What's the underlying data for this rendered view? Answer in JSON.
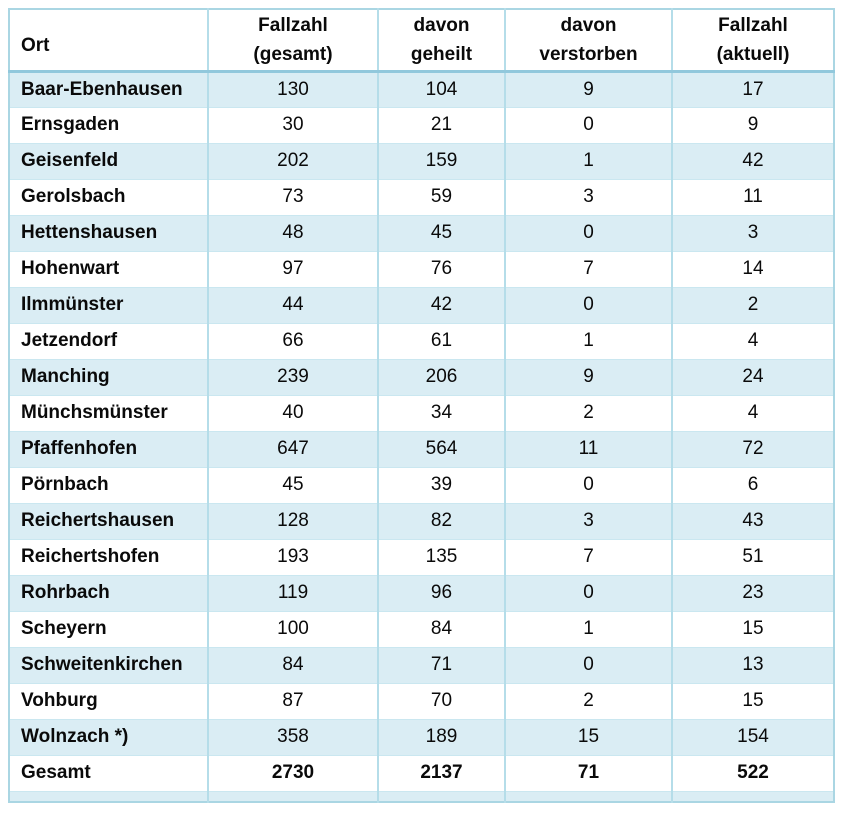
{
  "colors": {
    "row_alt_background": "#daedf4",
    "grid_line": "#b5dde9",
    "header_separator": "#91c8dc",
    "outer_border": "#aad6e3",
    "text": "#0a0a0a"
  },
  "chart_data": {
    "type": "table",
    "title": "",
    "columns": [
      [
        "",
        "Ort"
      ],
      [
        "Fallzahl",
        "(gesamt)"
      ],
      [
        "davon",
        "geheilt"
      ],
      [
        "davon",
        "verstorben"
      ],
      [
        "Fallzahl",
        "(aktuell)"
      ]
    ],
    "rows": [
      [
        "Baar-Ebenhausen",
        "130",
        "104",
        "9",
        "17"
      ],
      [
        "Ernsgaden",
        "30",
        "21",
        "0",
        "9"
      ],
      [
        "Geisenfeld",
        "202",
        "159",
        "1",
        "42"
      ],
      [
        "Gerolsbach",
        "73",
        "59",
        "3",
        "11"
      ],
      [
        "Hettenshausen",
        "48",
        "45",
        "0",
        "3"
      ],
      [
        "Hohenwart",
        "97",
        "76",
        "7",
        "14"
      ],
      [
        "Ilmmünster",
        "44",
        "42",
        "0",
        "2"
      ],
      [
        "Jetzendorf",
        "66",
        "61",
        "1",
        "4"
      ],
      [
        "Manching",
        "239",
        "206",
        "9",
        "24"
      ],
      [
        "Münchsmünster",
        "40",
        "34",
        "2",
        "4"
      ],
      [
        "Pfaffenhofen",
        "647",
        "564",
        "11",
        "72"
      ],
      [
        "Pörnbach",
        "45",
        "39",
        "0",
        "6"
      ],
      [
        "Reichertshausen",
        "128",
        "82",
        "3",
        "43"
      ],
      [
        "Reichertshofen",
        "193",
        "135",
        "7",
        "51"
      ],
      [
        "Rohrbach",
        "119",
        "96",
        "0",
        "23"
      ],
      [
        "Scheyern",
        "100",
        "84",
        "1",
        "15"
      ],
      [
        "Schweitenkirchen",
        "84",
        "71",
        "0",
        "13"
      ],
      [
        "Vohburg",
        "87",
        "70",
        "2",
        "15"
      ],
      [
        "Wolnzach *)",
        "358",
        "189",
        "15",
        "154"
      ]
    ],
    "total": [
      "Gesamt",
      "2730",
      "2137",
      "71",
      "522"
    ]
  }
}
